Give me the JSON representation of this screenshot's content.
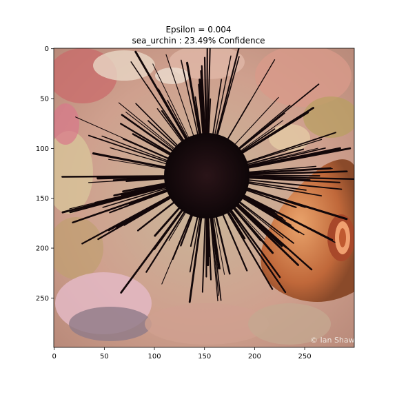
{
  "figure": {
    "title_line1": "Epsilon = 0.004",
    "title_line2": "sea_urchin : 23.49% Confidence",
    "watermark": "© Ian Shaw",
    "image_subject": "sea-urchin-photo"
  },
  "axes": {
    "x": {
      "ticks": [
        0,
        50,
        100,
        150,
        200,
        250
      ],
      "range": [
        0,
        299
      ]
    },
    "y": {
      "ticks": [
        0,
        50,
        100,
        150,
        200,
        250
      ],
      "range": [
        0,
        299
      ]
    }
  },
  "colors": {
    "urchin": "#1a0d10",
    "reef_pink": "#d98a8a",
    "reef_sand": "#d8c8a0",
    "sponge_orange": "#c86a3a"
  }
}
